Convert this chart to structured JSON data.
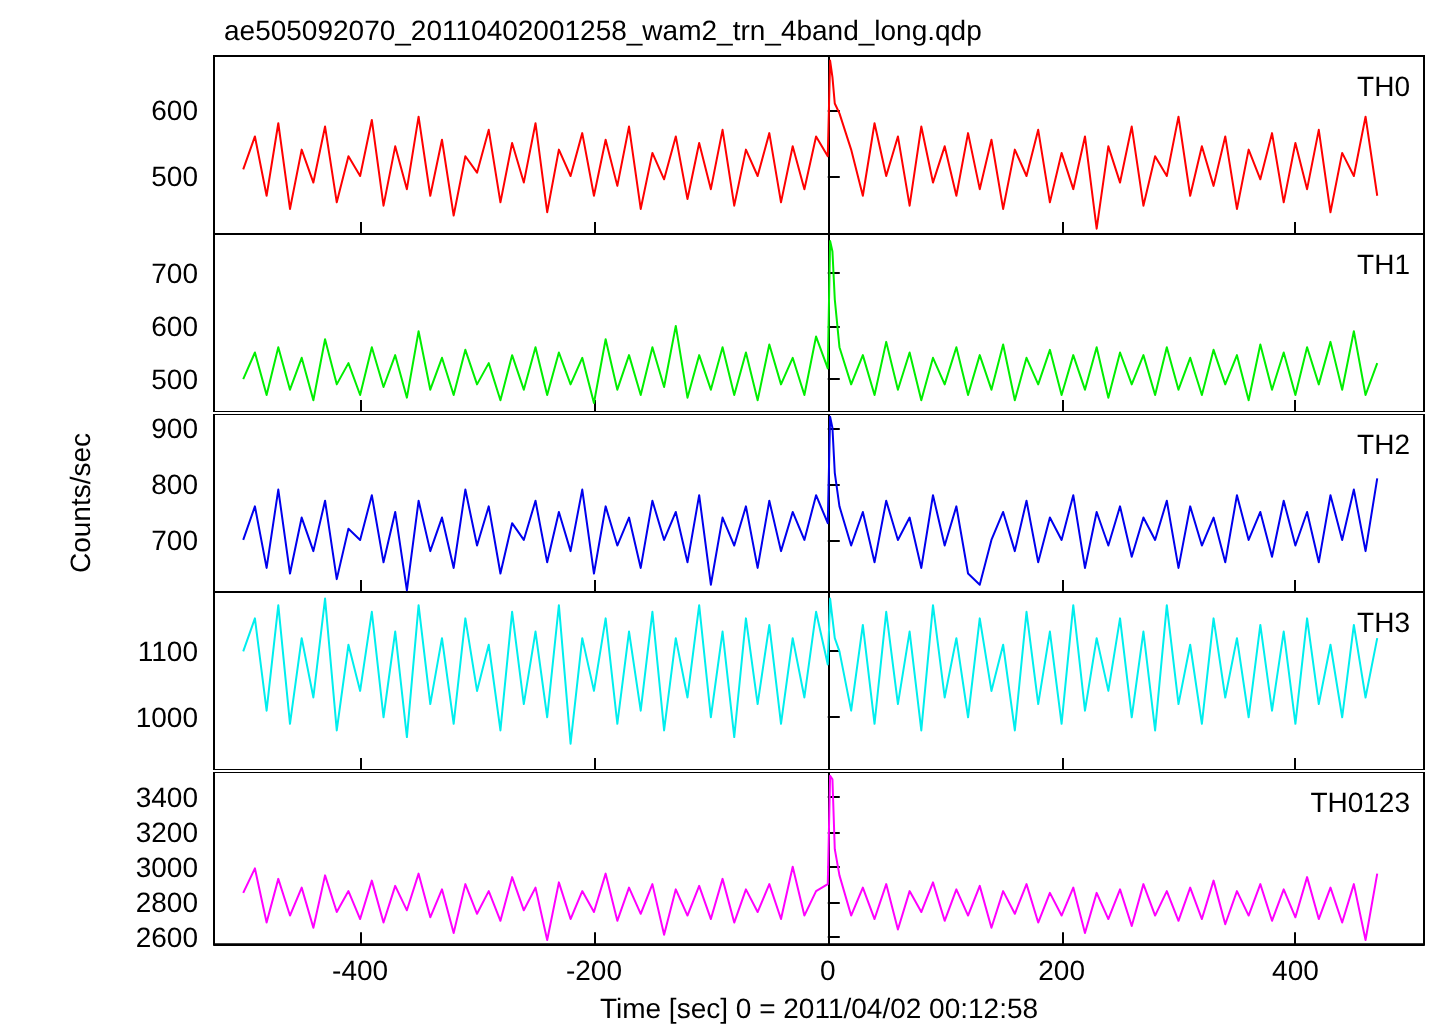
{
  "chart_data": [
    {
      "type": "line",
      "title": "ae505092070_20110402001258_wam2_trn_4band_long.qdp",
      "xlim": [
        -525,
        510
      ],
      "xticks": [
        -400,
        -200,
        0,
        200,
        400
      ],
      "ylim": [
        412,
        682
      ],
      "yticks": [
        500,
        600
      ],
      "tick_labels": "y",
      "marker": "none",
      "x": [
        -500,
        -490,
        -480,
        -470,
        -460,
        -450,
        -440,
        -430,
        -420,
        -410,
        -400,
        -390,
        -380,
        -370,
        -360,
        -350,
        -340,
        -330,
        -320,
        -310,
        -300,
        -290,
        -280,
        -270,
        -260,
        -250,
        -240,
        -230,
        -220,
        -210,
        -200,
        -190,
        -180,
        -170,
        -160,
        -150,
        -140,
        -130,
        -120,
        -110,
        -100,
        -90,
        -80,
        -70,
        -60,
        -50,
        -40,
        -30,
        -20,
        -10,
        0,
        2,
        4,
        6,
        10,
        20,
        30,
        40,
        50,
        60,
        70,
        80,
        90,
        100,
        110,
        120,
        130,
        140,
        150,
        160,
        170,
        180,
        190,
        200,
        210,
        220,
        230,
        240,
        250,
        260,
        270,
        280,
        290,
        300,
        310,
        320,
        330,
        340,
        350,
        360,
        370,
        380,
        390,
        400,
        410,
        420,
        430,
        440,
        450,
        460,
        470
      ],
      "series": [
        {
          "name": "TH0",
          "color": "#ff0000",
          "values": [
            510,
            560,
            470,
            580,
            450,
            540,
            490,
            575,
            460,
            530,
            500,
            585,
            455,
            545,
            480,
            590,
            470,
            555,
            440,
            530,
            505,
            570,
            460,
            550,
            490,
            580,
            445,
            540,
            500,
            565,
            470,
            555,
            485,
            575,
            450,
            535,
            495,
            560,
            465,
            550,
            480,
            570,
            455,
            540,
            500,
            565,
            460,
            545,
            480,
            560,
            530,
            675,
            650,
            610,
            595,
            540,
            470,
            580,
            500,
            560,
            455,
            575,
            490,
            545,
            470,
            565,
            480,
            555,
            450,
            540,
            500,
            570,
            460,
            535,
            480,
            560,
            420,
            545,
            490,
            575,
            455,
            530,
            500,
            590,
            470,
            545,
            485,
            560,
            450,
            540,
            495,
            565,
            460,
            550,
            480,
            570,
            445,
            535,
            500,
            590,
            470
          ]
        }
      ]
    },
    {
      "type": "line",
      "xlim": [
        -525,
        510
      ],
      "xticks": [
        -400,
        -200,
        0,
        200,
        400
      ],
      "ylim": [
        438,
        773
      ],
      "yticks": [
        500,
        600,
        700
      ],
      "tick_labels": "y",
      "marker": "none",
      "x": [
        -500,
        -490,
        -480,
        -470,
        -460,
        -450,
        -440,
        -430,
        -420,
        -410,
        -400,
        -390,
        -380,
        -370,
        -360,
        -350,
        -340,
        -330,
        -320,
        -310,
        -300,
        -290,
        -280,
        -270,
        -260,
        -250,
        -240,
        -230,
        -220,
        -210,
        -200,
        -190,
        -180,
        -170,
        -160,
        -150,
        -140,
        -130,
        -120,
        -110,
        -100,
        -90,
        -80,
        -70,
        -60,
        -50,
        -40,
        -30,
        -20,
        -10,
        0,
        2,
        4,
        6,
        10,
        20,
        30,
        40,
        50,
        60,
        70,
        80,
        90,
        100,
        110,
        120,
        130,
        140,
        150,
        160,
        170,
        180,
        190,
        200,
        210,
        220,
        230,
        240,
        250,
        260,
        270,
        280,
        290,
        300,
        310,
        320,
        330,
        340,
        350,
        360,
        370,
        380,
        390,
        400,
        410,
        420,
        430,
        440,
        450,
        460,
        470
      ],
      "series": [
        {
          "name": "TH1",
          "color": "#00ee00",
          "values": [
            500,
            550,
            470,
            560,
            480,
            540,
            460,
            575,
            490,
            530,
            470,
            560,
            485,
            545,
            465,
            590,
            480,
            540,
            470,
            555,
            490,
            530,
            460,
            545,
            480,
            560,
            470,
            550,
            490,
            540,
            455,
            575,
            480,
            545,
            470,
            560,
            485,
            600,
            465,
            545,
            480,
            560,
            470,
            550,
            460,
            565,
            490,
            540,
            470,
            580,
            520,
            760,
            740,
            650,
            560,
            490,
            545,
            470,
            570,
            480,
            550,
            460,
            540,
            490,
            560,
            470,
            545,
            480,
            565,
            460,
            540,
            490,
            555,
            470,
            545,
            480,
            560,
            465,
            550,
            490,
            545,
            470,
            560,
            480,
            540,
            470,
            555,
            490,
            545,
            460,
            565,
            480,
            550,
            470,
            560,
            490,
            570,
            480,
            590,
            470,
            530
          ]
        }
      ]
    },
    {
      "type": "line",
      "ylabel": "Counts/sec",
      "xlim": [
        -525,
        510
      ],
      "xticks": [
        -400,
        -200,
        0,
        200,
        400
      ],
      "ylim": [
        607,
        925
      ],
      "yticks": [
        700,
        800,
        900
      ],
      "tick_labels": "y",
      "marker": "none",
      "x": [
        -500,
        -490,
        -480,
        -470,
        -460,
        -450,
        -440,
        -430,
        -420,
        -410,
        -400,
        -390,
        -380,
        -370,
        -360,
        -350,
        -340,
        -330,
        -320,
        -310,
        -300,
        -290,
        -280,
        -270,
        -260,
        -250,
        -240,
        -230,
        -220,
        -210,
        -200,
        -190,
        -180,
        -170,
        -160,
        -150,
        -140,
        -130,
        -120,
        -110,
        -100,
        -90,
        -80,
        -70,
        -60,
        -50,
        -40,
        -30,
        -20,
        -10,
        0,
        2,
        4,
        6,
        10,
        20,
        30,
        40,
        50,
        60,
        70,
        80,
        90,
        100,
        110,
        120,
        130,
        140,
        150,
        160,
        170,
        180,
        190,
        200,
        210,
        220,
        230,
        240,
        250,
        260,
        270,
        280,
        290,
        300,
        310,
        320,
        330,
        340,
        350,
        360,
        370,
        380,
        390,
        400,
        410,
        420,
        430,
        440,
        450,
        460,
        470
      ],
      "series": [
        {
          "name": "TH2",
          "color": "#0000ee",
          "values": [
            700,
            760,
            650,
            790,
            640,
            740,
            680,
            770,
            630,
            720,
            700,
            780,
            660,
            750,
            610,
            770,
            680,
            740,
            650,
            790,
            690,
            760,
            640,
            730,
            700,
            770,
            660,
            750,
            680,
            790,
            640,
            760,
            690,
            740,
            650,
            770,
            700,
            750,
            660,
            780,
            620,
            740,
            690,
            760,
            650,
            770,
            680,
            750,
            700,
            780,
            730,
            920,
            900,
            820,
            760,
            690,
            750,
            660,
            770,
            700,
            740,
            650,
            780,
            690,
            760,
            640,
            620,
            700,
            750,
            680,
            770,
            660,
            740,
            700,
            780,
            650,
            750,
            690,
            760,
            670,
            740,
            700,
            770,
            650,
            760,
            690,
            740,
            660,
            780,
            700,
            750,
            670,
            770,
            690,
            750,
            660,
            780,
            700,
            790,
            680,
            810
          ]
        }
      ]
    },
    {
      "type": "line",
      "xlim": [
        -525,
        510
      ],
      "xticks": [
        -400,
        -200,
        0,
        200,
        400
      ],
      "ylim": [
        920,
        1190
      ],
      "yticks": [
        1000,
        1100
      ],
      "tick_labels": "y",
      "marker": "none",
      "x": [
        -500,
        -490,
        -480,
        -470,
        -460,
        -450,
        -440,
        -430,
        -420,
        -410,
        -400,
        -390,
        -380,
        -370,
        -360,
        -350,
        -340,
        -330,
        -320,
        -310,
        -300,
        -290,
        -280,
        -270,
        -260,
        -250,
        -240,
        -230,
        -220,
        -210,
        -200,
        -190,
        -180,
        -170,
        -160,
        -150,
        -140,
        -130,
        -120,
        -110,
        -100,
        -90,
        -80,
        -70,
        -60,
        -50,
        -40,
        -30,
        -20,
        -10,
        0,
        2,
        4,
        6,
        10,
        20,
        30,
        40,
        50,
        60,
        70,
        80,
        90,
        100,
        110,
        120,
        130,
        140,
        150,
        160,
        170,
        180,
        190,
        200,
        210,
        220,
        230,
        240,
        250,
        260,
        270,
        280,
        290,
        300,
        310,
        320,
        330,
        340,
        350,
        360,
        370,
        380,
        390,
        400,
        410,
        420,
        430,
        440,
        450,
        460,
        470
      ],
      "series": [
        {
          "name": "TH3",
          "color": "#00eeee",
          "values": [
            1100,
            1150,
            1010,
            1170,
            990,
            1120,
            1030,
            1180,
            980,
            1110,
            1040,
            1160,
            1000,
            1130,
            970,
            1170,
            1020,
            1120,
            990,
            1150,
            1040,
            1110,
            980,
            1160,
            1020,
            1130,
            1000,
            1170,
            960,
            1120,
            1040,
            1150,
            990,
            1130,
            1010,
            1160,
            980,
            1120,
            1030,
            1170,
            1000,
            1130,
            970,
            1150,
            1020,
            1140,
            990,
            1120,
            1030,
            1160,
            1080,
            1180,
            1150,
            1120,
            1100,
            1010,
            1140,
            990,
            1160,
            1020,
            1130,
            980,
            1170,
            1030,
            1120,
            1000,
            1150,
            1040,
            1110,
            980,
            1160,
            1020,
            1130,
            990,
            1170,
            1010,
            1120,
            1040,
            1150,
            1000,
            1130,
            980,
            1170,
            1020,
            1110,
            990,
            1150,
            1030,
            1120,
            1000,
            1140,
            1010,
            1130,
            990,
            1150,
            1020,
            1110,
            1000,
            1140,
            1030,
            1120
          ]
        }
      ]
    },
    {
      "type": "line",
      "xlabel": "Time [sec] 0 = 2011/04/02 00:12:58",
      "xlim": [
        -525,
        510
      ],
      "xticks": [
        -400,
        -200,
        0,
        200,
        400
      ],
      "ylim": [
        2556,
        3542
      ],
      "yticks": [
        2600,
        2800,
        3000,
        3200,
        3400
      ],
      "marker": "none",
      "x": [
        -500,
        -490,
        -480,
        -470,
        -460,
        -450,
        -440,
        -430,
        -420,
        -410,
        -400,
        -390,
        -380,
        -370,
        -360,
        -350,
        -340,
        -330,
        -320,
        -310,
        -300,
        -290,
        -280,
        -270,
        -260,
        -250,
        -240,
        -230,
        -220,
        -210,
        -200,
        -190,
        -180,
        -170,
        -160,
        -150,
        -140,
        -130,
        -120,
        -110,
        -100,
        -90,
        -80,
        -70,
        -60,
        -50,
        -40,
        -30,
        -20,
        -10,
        0,
        2,
        4,
        6,
        10,
        20,
        30,
        40,
        50,
        60,
        70,
        80,
        90,
        100,
        110,
        120,
        130,
        140,
        150,
        160,
        170,
        180,
        190,
        200,
        210,
        220,
        230,
        240,
        250,
        260,
        270,
        280,
        290,
        300,
        310,
        320,
        330,
        340,
        350,
        360,
        370,
        380,
        390,
        400,
        410,
        420,
        430,
        440,
        450,
        460,
        470
      ],
      "series": [
        {
          "name": "TH0123",
          "color": "#ff00ff",
          "values": [
            2850,
            2990,
            2680,
            2930,
            2720,
            2880,
            2650,
            2950,
            2740,
            2860,
            2700,
            2920,
            2680,
            2890,
            2750,
            2960,
            2710,
            2870,
            2620,
            2900,
            2730,
            2860,
            2690,
            2940,
            2750,
            2880,
            2580,
            2910,
            2700,
            2860,
            2740,
            2960,
            2690,
            2880,
            2730,
            2900,
            2610,
            2870,
            2720,
            2890,
            2700,
            2930,
            2680,
            2870,
            2740,
            2900,
            2700,
            3000,
            2720,
            2860,
            2900,
            3520,
            3500,
            3100,
            2950,
            2720,
            2880,
            2700,
            2900,
            2640,
            2860,
            2740,
            2910,
            2690,
            2870,
            2720,
            2890,
            2650,
            2860,
            2730,
            2900,
            2680,
            2850,
            2720,
            2880,
            2620,
            2850,
            2700,
            2870,
            2660,
            2900,
            2720,
            2860,
            2690,
            2880,
            2700,
            2920,
            2670,
            2860,
            2720,
            2900,
            2690,
            2870,
            2710,
            2940,
            2700,
            2880,
            2680,
            2900,
            2580,
            2960
          ]
        }
      ]
    }
  ]
}
